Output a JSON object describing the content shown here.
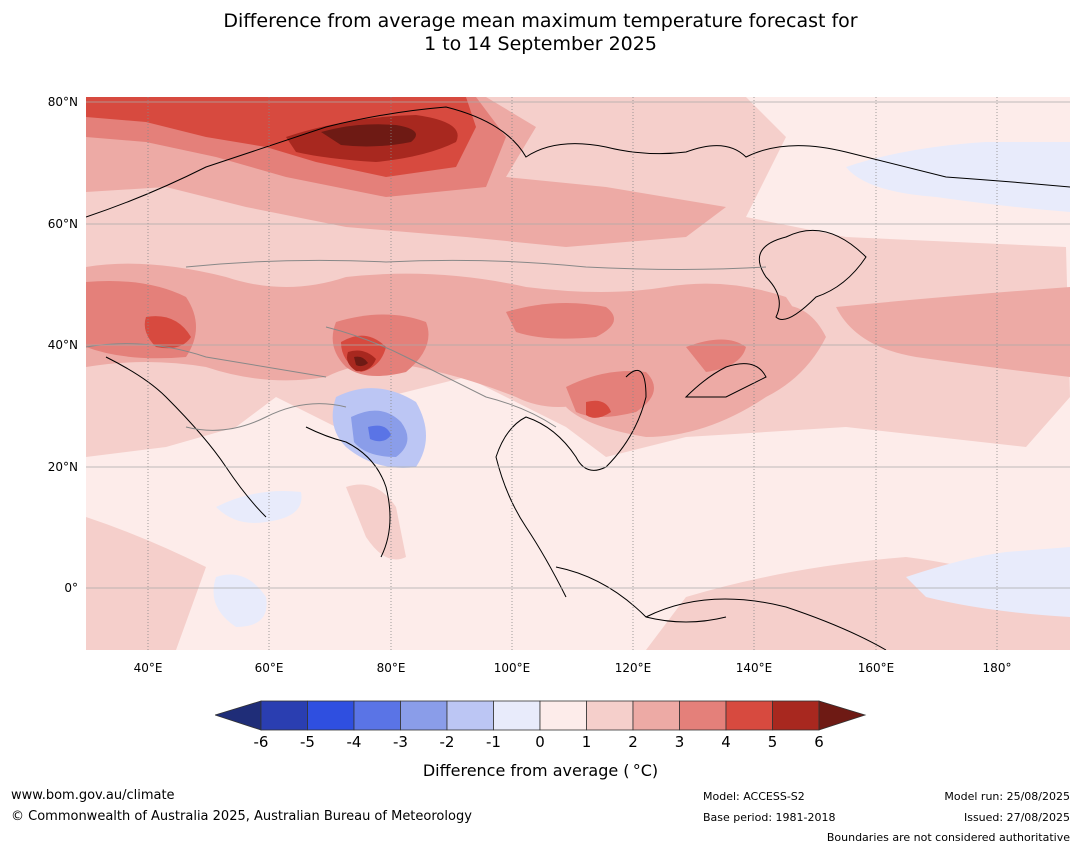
{
  "title": {
    "line1": "Difference from average mean maximum temperature forecast for",
    "line2": "1 to 14 September 2025"
  },
  "map": {
    "lat_labels": [
      "80°N",
      "60°N",
      "40°N",
      "20°N",
      "0°"
    ],
    "lon_labels": [
      "40°E",
      "60°E",
      "80°E",
      "100°E",
      "120°E",
      "140°E",
      "160°E",
      "180°"
    ]
  },
  "colorbar": {
    "ticks": [
      "-6",
      "-5",
      "-4",
      "-3",
      "-2",
      "-1",
      "0",
      "1",
      "2",
      "3",
      "4",
      "5",
      "6"
    ],
    "colors": [
      "#1f2d78",
      "#2a3eb1",
      "#2f4fe0",
      "#5a74e6",
      "#8a9de9",
      "#bcc6f4",
      "#e8ebfb",
      "#fdecea",
      "#f5cfcb",
      "#edaaa5",
      "#e4807a",
      "#d74a3f",
      "#a8281f",
      "#6e1a14"
    ],
    "label": "Difference from average ( °C)"
  },
  "footer": {
    "url": "www.bom.gov.au/climate",
    "copyright": "© Commonwealth of Australia 2025, Australian Bureau of Meteorology",
    "model": "Model: ACCESS-S2",
    "base_period": "Base period: 1981-2018",
    "model_run": "Model run: 25/08/2025",
    "issued": "Issued: 27/08/2025",
    "disclaimer": "Boundaries are not considered authoritative"
  }
}
